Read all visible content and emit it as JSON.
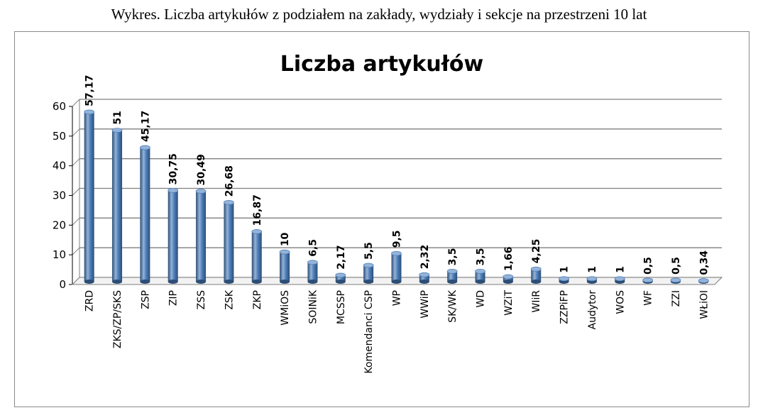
{
  "caption": "Wykres. Liczba artykułów z podziałem na zakłady, wydziały i sekcje na przestrzeni 10 lat",
  "colors": {
    "bar": "#4f81bd",
    "bar_dark": "#2c4d75",
    "bar_light": "#95b3d7",
    "grid": "#7f7f7f"
  },
  "chart_data": {
    "type": "bar",
    "title": "Liczba artykułów",
    "xlabel": "",
    "ylabel": "",
    "ylim": [
      0,
      60
    ],
    "yticks": [
      "0",
      "10",
      "20",
      "30",
      "40",
      "50",
      "60"
    ],
    "grid": true,
    "legend": "none",
    "categories": [
      "ZRD",
      "ZKS/ZP/SKS",
      "ZSP",
      "ZIP",
      "ZSS",
      "ZSK",
      "ZKP",
      "WMiOS",
      "SOINiK",
      "MCSSP",
      "Komendanci CSP",
      "WP",
      "WWiP",
      "SK/WK",
      "WD",
      "WZiT",
      "WIiR",
      "ZZPiFP",
      "Audytor",
      "WOS",
      "WF",
      "ZZI",
      "WŁiOI"
    ],
    "values": [
      57.17,
      51,
      45.17,
      30.75,
      30.49,
      26.68,
      16.87,
      10,
      6.5,
      2.17,
      5.5,
      9.5,
      2.32,
      3.5,
      3.5,
      1.66,
      4.25,
      1,
      1,
      1,
      0.5,
      0.5,
      0.34
    ],
    "value_labels": [
      "57,17",
      "51",
      "45,17",
      "30,75",
      "30,49",
      "26,68",
      "16,87",
      "10",
      "6,5",
      "2,17",
      "5,5",
      "9,5",
      "2,32",
      "3,5",
      "3,5",
      "1,66",
      "4,25",
      "1",
      "1",
      "1",
      "0,5",
      "0,5",
      "0,34"
    ]
  }
}
